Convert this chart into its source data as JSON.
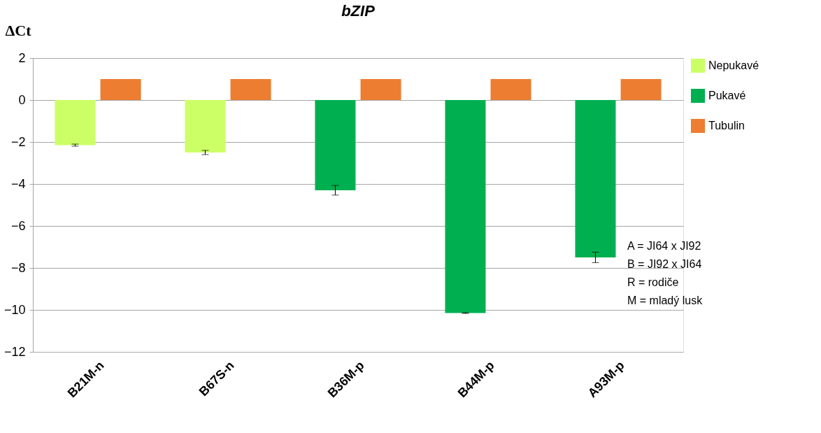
{
  "chart_data": {
    "type": "bar",
    "title": "bZIP",
    "ylabel": "ΔCt",
    "categories": [
      "B21M-n",
      "B67S-n",
      "B36M-p",
      "B44M-p",
      "A93M-p"
    ],
    "series": [
      {
        "name": "Nepukavé",
        "color": "#ccff66",
        "values": [
          -2.15,
          -2.5,
          null,
          null,
          null
        ],
        "errors": [
          0.05,
          0.1,
          null,
          null,
          null
        ]
      },
      {
        "name": "Pukavé",
        "color": "#00b050",
        "values": [
          null,
          null,
          -4.3,
          -10.15,
          -7.5
        ],
        "errors": [
          null,
          null,
          0.23,
          0.02,
          0.25
        ]
      },
      {
        "name": "Tubulin",
        "color": "#ed7d31",
        "values": [
          1,
          1,
          1,
          1,
          1
        ]
      }
    ],
    "ylim": [
      -12,
      2
    ],
    "yticks": [
      -12,
      -10,
      -8,
      -6,
      -4,
      -2,
      0,
      2
    ],
    "grid": "y",
    "legend": "right",
    "annotations": [
      "A = JI64 x JI92",
      "B = JI92 x JI64",
      "R = rodiče",
      "M = mladý lusk"
    ]
  }
}
